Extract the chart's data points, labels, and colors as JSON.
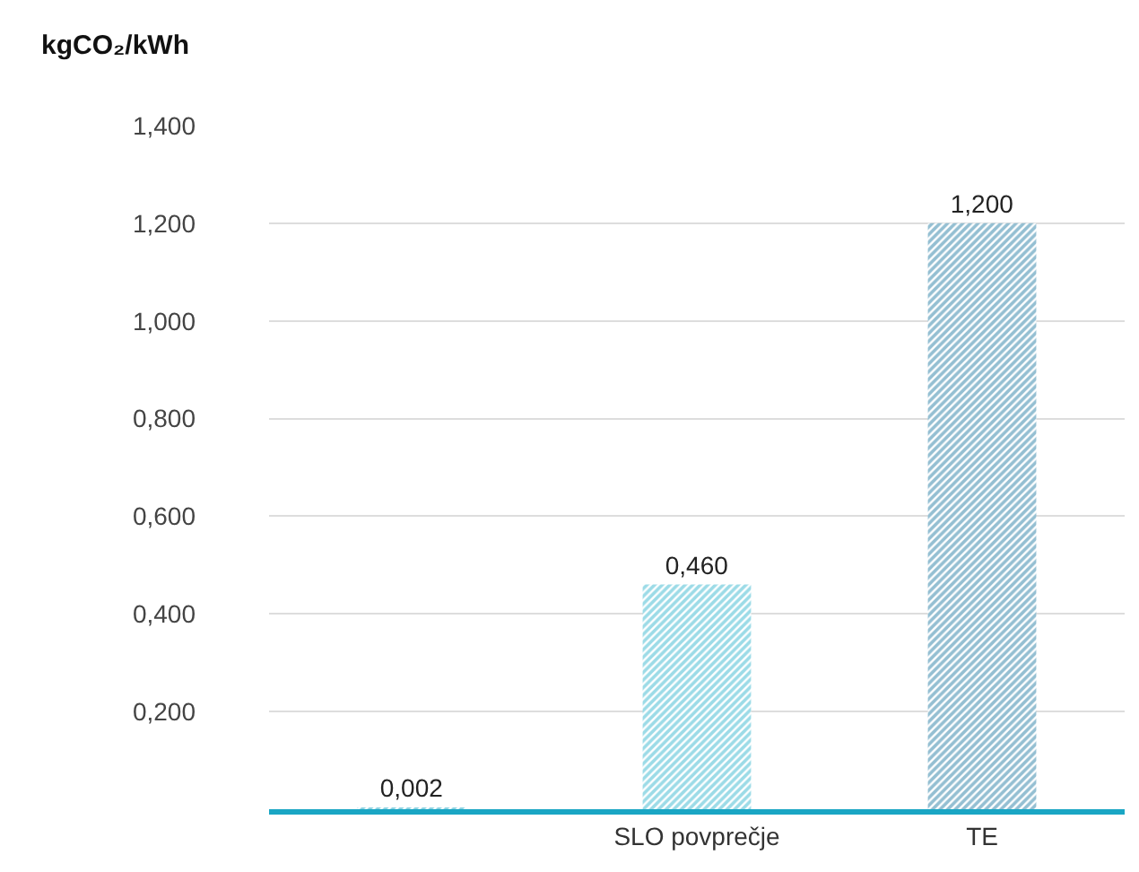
{
  "chart_data": {
    "type": "bar",
    "ylabel": "kgCO₂/kWh",
    "categories": [
      null,
      "SLO povprečje",
      "TE"
    ],
    "values": [
      0.002,
      0.46,
      1.2
    ],
    "colors": [
      "#1aa6c4",
      "#3ab8d0",
      "#2a7fa6"
    ],
    "value_labels": [
      "0,002",
      "0,460",
      "1,200"
    ],
    "ylim": [
      0,
      1.4
    ],
    "yticks": [
      {
        "value": 0.2,
        "label": "0,200"
      },
      {
        "value": 0.4,
        "label": "0,400"
      },
      {
        "value": 0.6,
        "label": "0,600"
      },
      {
        "value": 0.8,
        "label": "0,800"
      },
      {
        "value": 1.0,
        "label": "1,000"
      },
      {
        "value": 1.2,
        "label": "1,200"
      },
      {
        "value": 1.4,
        "label": "1,400"
      }
    ],
    "grid": "y",
    "legend": false
  }
}
